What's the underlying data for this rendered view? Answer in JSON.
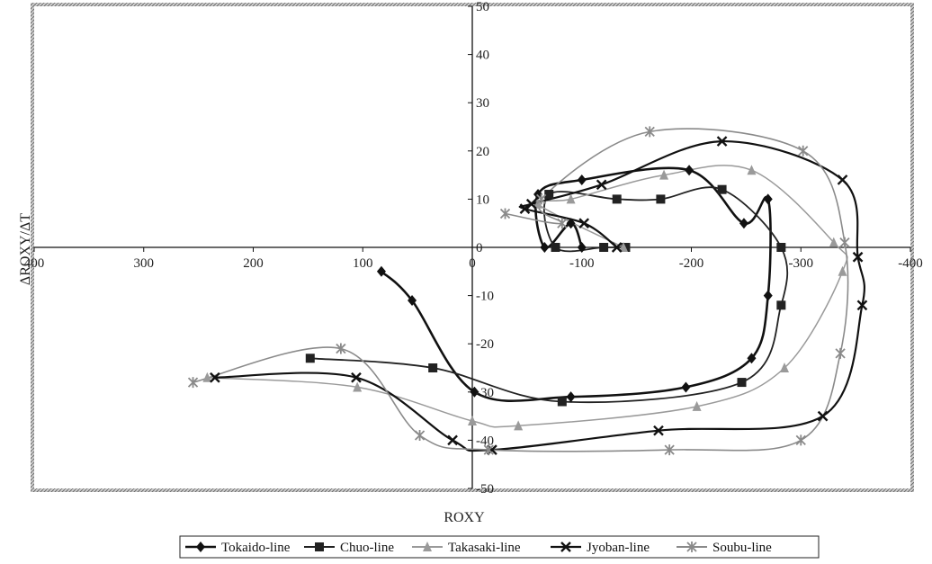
{
  "chart_data": {
    "type": "line",
    "title": "",
    "xlabel": "ROXY",
    "ylabel": "ΔROXY/ΔT",
    "xlim": [
      400,
      -400
    ],
    "ylim": [
      -50,
      50
    ],
    "x_reversed": true,
    "x_ticks": [
      400,
      300,
      200,
      100,
      0,
      -100,
      -200,
      -300,
      -400
    ],
    "y_ticks": [
      50,
      40,
      30,
      20,
      10,
      0,
      -10,
      -20,
      -30,
      -40,
      -50
    ],
    "x_tick_labels": [
      "400",
      "300",
      "200",
      "100",
      "0",
      "-100",
      "-200",
      "-300",
      "-400"
    ],
    "y_tick_labels": [
      "50",
      "40",
      "30",
      "20",
      "10",
      "0",
      "-10",
      "-20",
      "-30",
      "-40",
      "-50"
    ],
    "grid": false,
    "legend_position": "bottom",
    "series": [
      {
        "name": "Tokaido-line",
        "marker": "diamond",
        "color": "#111111",
        "stroke_width": 2.6,
        "x": [
          83,
          55,
          -2,
          -90,
          -195,
          -255,
          -270,
          -270,
          -248,
          -198,
          -100,
          -60,
          -66,
          -90,
          -100
        ],
        "y": [
          -5,
          -11,
          -30,
          -31,
          -29,
          -23,
          -10,
          10,
          5,
          16,
          14,
          11,
          0,
          5,
          0
        ]
      },
      {
        "name": "Chuo-line",
        "marker": "square",
        "color": "#222222",
        "stroke_width": 1.8,
        "x": [
          148,
          36,
          -82,
          -246,
          -282,
          -282,
          -228,
          -172,
          -132,
          -70,
          -76,
          -120,
          -140
        ],
        "y": [
          -23,
          -25,
          -32,
          -28,
          -12,
          0,
          12,
          10,
          10,
          11,
          0,
          0,
          0
        ]
      },
      {
        "name": "Takasaki-line",
        "marker": "triangle",
        "color": "#9a9a9a",
        "stroke_width": 1.5,
        "x": [
          242,
          105,
          0,
          -42,
          -205,
          -285,
          -338,
          -330,
          -255,
          -175,
          -90,
          -60,
          -138
        ],
        "y": [
          -27,
          -29,
          -36,
          -37,
          -33,
          -25,
          -5,
          1,
          16,
          15,
          10,
          9,
          0
        ]
      },
      {
        "name": "Jyoban-line",
        "marker": "x",
        "color": "#111111",
        "stroke_width": 2.2,
        "x": [
          235,
          106,
          18,
          -18,
          -170,
          -320,
          -356,
          -352,
          -338,
          -228,
          -118,
          -54,
          -48,
          -102,
          -132
        ],
        "y": [
          -27,
          -27,
          -40,
          -42,
          -38,
          -35,
          -12,
          -2,
          14,
          22,
          13,
          9,
          8,
          5,
          0
        ]
      },
      {
        "name": "Soubu-line",
        "marker": "asterisk",
        "color": "#8a8a8a",
        "stroke_width": 1.6,
        "x": [
          255,
          120,
          48,
          -15,
          -180,
          -300,
          -336,
          -340,
          -302,
          -162,
          -63,
          -82,
          -30
        ],
        "y": [
          -28,
          -21,
          -39,
          -42,
          -42,
          -40,
          -22,
          1,
          20,
          24,
          10,
          5,
          7
        ]
      }
    ]
  }
}
